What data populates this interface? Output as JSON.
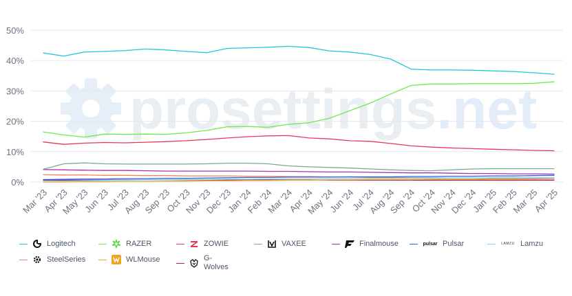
{
  "chart_data": {
    "type": "line",
    "watermark": {
      "part1": "prosettings",
      "part2": ".net"
    },
    "ylim": [
      0,
      50
    ],
    "yticks": [
      "0%",
      "10%",
      "20%",
      "30%",
      "40%",
      "50%"
    ],
    "categories": [
      "Mar '23",
      "Apr '23",
      "May '23",
      "Jun '23",
      "Jul '23",
      "Aug '23",
      "Sep '23",
      "Oct '23",
      "Nov '23",
      "Dec '23",
      "Jan '24",
      "Feb '24",
      "Mar '24",
      "Apr '24",
      "May '24",
      "Jun '24",
      "Jul '24",
      "Aug '24",
      "Sep '24",
      "Oct '24",
      "Nov '24",
      "Dec '24",
      "Jan '25",
      "Feb '25",
      "Mar '25",
      "Apr '25"
    ],
    "series": [
      {
        "name": "Logitech",
        "color": "#22c5e0",
        "values": [
          42.5,
          41.5,
          42.8,
          43.0,
          43.3,
          43.8,
          43.5,
          43.0,
          42.6,
          44.0,
          44.2,
          44.4,
          44.7,
          44.3,
          43.2,
          42.8,
          42.0,
          40.5,
          37.2,
          36.9,
          36.9,
          36.8,
          36.6,
          36.4,
          36.0,
          35.5
        ]
      },
      {
        "name": "RAZER",
        "color": "#6fe84a",
        "values": [
          16.5,
          15.5,
          14.8,
          15.8,
          15.7,
          15.8,
          15.7,
          16.2,
          17.0,
          18.2,
          18.3,
          18.0,
          19.0,
          19.5,
          21.0,
          23.5,
          26.0,
          29.0,
          31.8,
          32.3,
          32.3,
          32.4,
          32.4,
          32.4,
          32.5,
          33.0
        ]
      },
      {
        "name": "ZOWIE",
        "color": "#e8365a",
        "values": [
          13.2,
          12.4,
          12.8,
          13.0,
          12.9,
          13.1,
          13.3,
          13.6,
          14.0,
          14.5,
          14.9,
          15.2,
          15.3,
          14.5,
          14.2,
          13.6,
          13.4,
          12.7,
          11.9,
          11.5,
          11.2,
          11.0,
          10.8,
          10.6,
          10.4,
          10.3
        ]
      },
      {
        "name": "VAXEE",
        "color": "#7aaa90",
        "values": [
          4.2,
          6.0,
          6.3,
          6.0,
          5.9,
          5.9,
          5.9,
          5.9,
          6.0,
          6.2,
          6.2,
          6.0,
          5.3,
          5.0,
          4.8,
          4.6,
          4.3,
          4.0,
          3.8,
          3.7,
          4.0,
          4.3,
          4.4,
          4.4,
          4.4,
          4.4
        ]
      },
      {
        "name": "Finalmouse",
        "color": "#a62fb8",
        "values": [
          4.1,
          4.0,
          3.9,
          3.8,
          3.8,
          3.7,
          3.6,
          3.6,
          3.6,
          3.6,
          3.6,
          3.5,
          3.5,
          3.4,
          3.3,
          3.3,
          3.2,
          3.1,
          3.0,
          3.0,
          2.9,
          2.8,
          2.8,
          2.7,
          2.7,
          2.6
        ]
      },
      {
        "name": "Pulsar",
        "color": "#2563eb",
        "values": [
          0.8,
          0.9,
          1.0,
          1.0,
          1.1,
          1.1,
          1.2,
          1.2,
          1.3,
          1.4,
          1.5,
          1.5,
          1.6,
          1.6,
          1.6,
          1.7,
          1.7,
          1.7,
          1.8,
          1.8,
          1.9,
          1.9,
          2.0,
          2.0,
          2.1,
          2.2
        ]
      },
      {
        "name": "Lamzu",
        "color": "#7dd3fc",
        "values": [
          0.2,
          0.3,
          0.4,
          0.5,
          0.6,
          0.7,
          0.7,
          0.8,
          0.8,
          0.9,
          0.9,
          1.0,
          1.0,
          1.0,
          1.1,
          1.1,
          1.2,
          1.2,
          1.2,
          1.3,
          1.3,
          1.3,
          1.4,
          1.4,
          1.4,
          1.5
        ]
      },
      {
        "name": "SteelSeries",
        "color": "#f4845f",
        "values": [
          2.4,
          2.3,
          2.3,
          2.2,
          2.2,
          2.1,
          2.1,
          2.0,
          2.0,
          2.0,
          1.9,
          1.9,
          1.8,
          1.8,
          1.7,
          1.6,
          1.5,
          1.5,
          1.4,
          1.4,
          1.3,
          1.3,
          1.2,
          1.2,
          1.1,
          1.1
        ]
      },
      {
        "name": "WLMouse",
        "color": "#f0a520",
        "values": [
          0.0,
          0.0,
          0.1,
          0.1,
          0.2,
          0.2,
          0.3,
          0.3,
          0.4,
          0.4,
          0.5,
          0.5,
          0.6,
          0.6,
          0.7,
          0.7,
          0.8,
          0.8,
          0.8,
          0.9,
          0.9,
          0.9,
          1.0,
          1.0,
          1.0,
          1.1
        ]
      },
      {
        "name": "G-Wolves",
        "color": "#b0234a",
        "values": [
          0.6,
          0.6,
          0.6,
          0.6,
          0.7,
          0.7,
          0.7,
          0.7,
          0.7,
          0.7,
          0.7,
          0.7,
          0.7,
          0.7,
          0.6,
          0.6,
          0.6,
          0.6,
          0.6,
          0.6,
          0.6,
          0.6,
          0.6,
          0.6,
          0.6,
          0.6
        ]
      }
    ]
  },
  "legend": {
    "items": [
      {
        "label": "Logitech",
        "color": "#22c5e0",
        "logo": "logitech-logo"
      },
      {
        "label": "RAZER",
        "color": "#6fe84a",
        "logo": "razer-logo"
      },
      {
        "label": "ZOWIE",
        "color": "#e8365a",
        "logo": "zowie-logo"
      },
      {
        "label": "VAXEE",
        "color": "#7aaa90",
        "logo": "vaxee-logo"
      },
      {
        "label": "Finalmouse",
        "color": "#a62fb8",
        "logo": "finalmouse-logo"
      },
      {
        "label": "Pulsar",
        "color": "#2563eb",
        "logo": "pulsar-logo",
        "logo_text": "pulsar"
      },
      {
        "label": "Lamzu",
        "color": "#7dd3fc",
        "logo": "lamzu-logo",
        "logo_text": "LAMZU"
      },
      {
        "label": "SteelSeries",
        "color": "#f4845f",
        "logo": "steelseries-logo"
      },
      {
        "label": "WLMouse",
        "color": "#f0a520",
        "logo": "wlmouse-logo"
      },
      {
        "label": "G-\nWolves",
        "color": "#b0234a",
        "logo": "g-wolves-logo"
      }
    ]
  }
}
